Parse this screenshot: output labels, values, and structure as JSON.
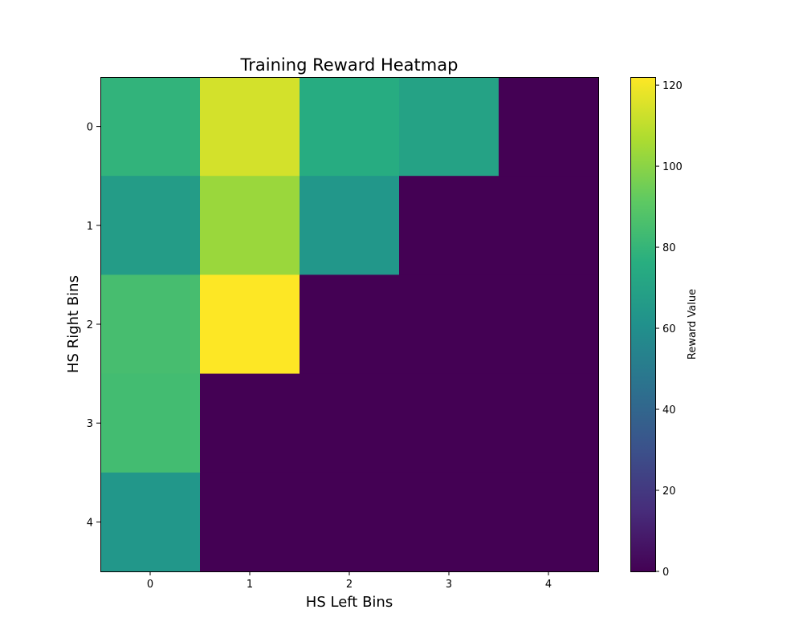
{
  "chart_data": {
    "type": "heatmap",
    "title": "Training Reward Heatmap",
    "xlabel": "HS Left Bins",
    "ylabel": "HS Right Bins",
    "x_categories": [
      "0",
      "1",
      "2",
      "3",
      "4"
    ],
    "y_categories": [
      "0",
      "1",
      "2",
      "3",
      "4"
    ],
    "values": [
      [
        79,
        114,
        75,
        70,
        0
      ],
      [
        67,
        103,
        64,
        0,
        0
      ],
      [
        85,
        122,
        0,
        0,
        0
      ],
      [
        84,
        0,
        0,
        0,
        0
      ],
      [
        64,
        0,
        0,
        0,
        0
      ]
    ],
    "colormap": "viridis",
    "colorbar": {
      "label": "Reward Value",
      "range": [
        0,
        122
      ],
      "ticks": [
        "0",
        "20",
        "40",
        "60",
        "80",
        "100",
        "120"
      ]
    },
    "grid": false
  }
}
